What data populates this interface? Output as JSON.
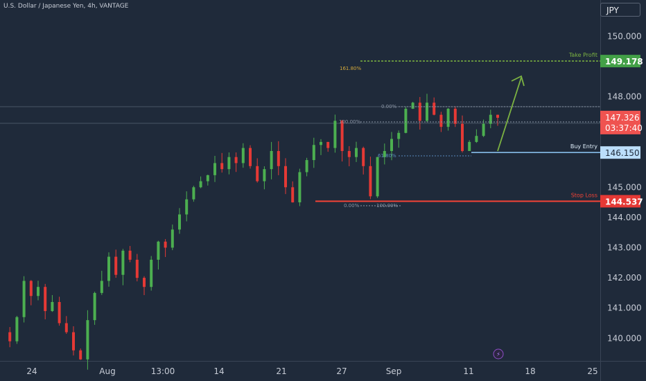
{
  "header": {
    "symbol_title": "U.S. Dollar / Japanese Yen, 4h, VANTAGE",
    "currency_button": "JPY"
  },
  "colors": {
    "background": "#1f2a3a",
    "up": "#4caf50",
    "down": "#e53935",
    "take_profit": "#7cb342",
    "stop_loss": "#f44336",
    "buy_entry": "#90caf9",
    "price_tag": "#ef5350"
  },
  "chart_data": {
    "type": "candlestick",
    "title": "U.S. Dollar / Japanese Yen, 4h, VANTAGE",
    "y_ticks": [
      140.0,
      141.0,
      142.0,
      143.0,
      144.0,
      145.0,
      148.0,
      150.0
    ],
    "y_tick_labels": [
      "140.000",
      "141.000",
      "142.000",
      "143.000",
      "144.000",
      "145.000",
      "148.000",
      "150.000"
    ],
    "ylim": [
      139.25,
      151.2
    ],
    "x_labels": [
      "24",
      "Aug",
      "13:00",
      "14",
      "21",
      "27",
      "Sep",
      "11",
      "18",
      "25"
    ],
    "levels": {
      "take_profit": {
        "label": "Take Profit",
        "price": "149.178",
        "value": 149.178
      },
      "buy_entry": {
        "label": "Buy Entry",
        "price": "146.150",
        "value": 146.15
      },
      "stop_loss": {
        "label": "Stop Loss",
        "price": "144.537",
        "value": 144.537
      },
      "current": {
        "price": "147.326",
        "countdown": "03:37:40",
        "value": 147.326
      }
    },
    "fib_labels": [
      "161.80%",
      "100.00%",
      "0.00%",
      "0.00%",
      "100.00%",
      "61.80%"
    ],
    "path": [
      140.2,
      139.9,
      140.7,
      141.9,
      141.4,
      141.7,
      140.9,
      141.2,
      140.5,
      140.2,
      139.6,
      139.3,
      140.6,
      141.5,
      141.9,
      142.7,
      142.1,
      142.9,
      142.6,
      142.0,
      141.7,
      142.6,
      143.2,
      143.0,
      143.6,
      144.1,
      144.6,
      145.0,
      145.2,
      145.4,
      145.8,
      145.6,
      146.0,
      145.8,
      146.3,
      145.7,
      145.2,
      145.6,
      146.2,
      145.7,
      145.0,
      144.5,
      145.5,
      145.9,
      146.4,
      146.5,
      146.3,
      147.2,
      146.2,
      146.0,
      146.3,
      145.7,
      144.7,
      146.0,
      146.2,
      146.6,
      146.8,
      147.6,
      147.8,
      147.2,
      147.8,
      147.4,
      147.0,
      147.6,
      147.1,
      146.2,
      146.5,
      146.7,
      147.1,
      147.4,
      147.3
    ]
  }
}
